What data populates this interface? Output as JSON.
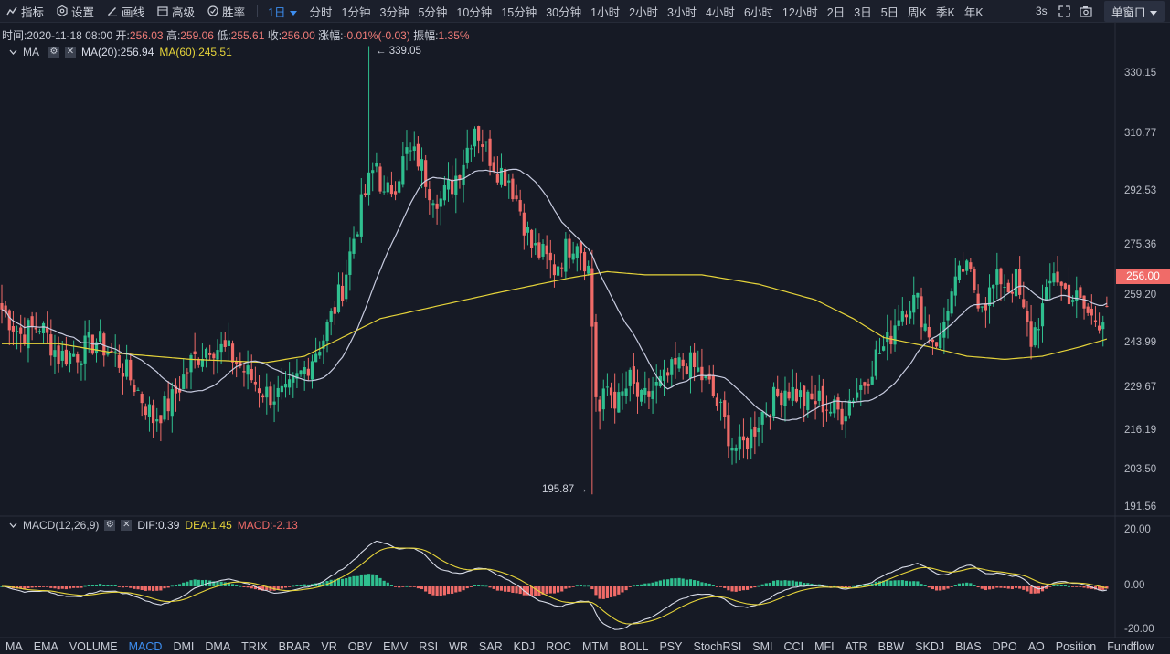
{
  "toolbar": {
    "tools": [
      {
        "label": "指标",
        "icon": "indicator-icon"
      },
      {
        "label": "设置",
        "icon": "settings-icon"
      },
      {
        "label": "画线",
        "icon": "draw-line-icon"
      },
      {
        "label": "高级",
        "icon": "advanced-icon"
      },
      {
        "label": "胜率",
        "icon": "winrate-icon"
      }
    ],
    "active_interval": "1日",
    "intervals": [
      "分时",
      "1分钟",
      "3分钟",
      "5分钟",
      "10分钟",
      "15分钟",
      "30分钟",
      "1小时",
      "2小时",
      "3小时",
      "4小时",
      "6小时",
      "12小时",
      "2日",
      "3日",
      "5日",
      "周K",
      "季K",
      "年K"
    ],
    "refresh": "3s",
    "window_mode": "单窗口"
  },
  "info": {
    "time_label": "时间:",
    "time": "2020-11-18 08:00",
    "open_label": "开:",
    "open": "256.03",
    "high_label": "高:",
    "high": "259.06",
    "low_label": "低:",
    "low": "255.61",
    "close_label": "收:",
    "close": "256.00",
    "change_label": "涨幅:",
    "change": "-0.01%(-0.03)",
    "amp_label": "振幅:",
    "amp": "1.35%"
  },
  "ma": {
    "name": "MA",
    "ma20": "MA(20):256.94",
    "ma60": "MA(60):245.51"
  },
  "macd": {
    "name": "MACD(12,26,9)",
    "dif": "DIF:0.39",
    "dea": "DEA:1.45",
    "macd": "MACD:-2.13"
  },
  "price_axis": [
    "330.15",
    "310.77",
    "292.53",
    "275.36",
    "259.20",
    "243.99",
    "229.67",
    "216.19",
    "203.50",
    "191.56"
  ],
  "macd_axis": [
    "20.00",
    "0.00",
    "-20.00"
  ],
  "current_price": "256.00",
  "annotations": {
    "high": "← 339.05",
    "low": "195.87 →"
  },
  "indicators": [
    "MA",
    "EMA",
    "VOLUME",
    "MACD",
    "DMI",
    "DMA",
    "TRIX",
    "BRAR",
    "VR",
    "OBV",
    "EMV",
    "RSI",
    "WR",
    "SAR",
    "KDJ",
    "ROC",
    "MTM",
    "BOLL",
    "PSY",
    "StochRSI",
    "SMI",
    "CCI",
    "MFI",
    "ATR",
    "BBW",
    "SKDJ",
    "BIAS",
    "DPO",
    "AO",
    "Position",
    "Fundflow"
  ],
  "active_indicator": "MACD",
  "colors": {
    "up": "#2fbf8f",
    "down": "#f06b68",
    "ma20": "#c8cce0",
    "ma60": "#e6d43a",
    "dif": "#d8dce8",
    "dea": "#e6d43a",
    "accent": "#3d8ef0"
  },
  "chart_data": {
    "type": "candlestick",
    "anchors_close": [
      [
        0,
        255
      ],
      [
        5,
        247
      ],
      [
        10,
        250
      ],
      [
        15,
        240
      ],
      [
        20,
        241
      ],
      [
        25,
        245
      ],
      [
        30,
        240
      ],
      [
        35,
        231
      ],
      [
        40,
        220
      ],
      [
        45,
        226
      ],
      [
        50,
        238
      ],
      [
        55,
        244
      ],
      [
        60,
        241
      ],
      [
        65,
        234
      ],
      [
        70,
        228
      ],
      [
        75,
        227
      ],
      [
        80,
        236
      ],
      [
        85,
        246
      ],
      [
        90,
        262
      ],
      [
        93,
        278
      ],
      [
        96,
        292
      ],
      [
        99,
        302
      ],
      [
        101,
        290
      ],
      [
        104,
        296
      ],
      [
        107,
        305
      ],
      [
        110,
        303
      ],
      [
        113,
        294
      ],
      [
        116,
        290
      ],
      [
        119,
        295
      ],
      [
        122,
        303
      ],
      [
        125,
        314
      ],
      [
        128,
        306
      ],
      [
        131,
        300
      ],
      [
        134,
        297
      ],
      [
        137,
        287
      ],
      [
        140,
        275
      ],
      [
        143,
        272
      ],
      [
        146,
        268
      ],
      [
        149,
        274
      ],
      [
        152,
        278
      ],
      [
        155,
        268
      ],
      [
        156,
        250
      ],
      [
        157,
        228
      ],
      [
        158,
        222
      ],
      [
        160,
        230
      ],
      [
        163,
        225
      ],
      [
        166,
        232
      ],
      [
        169,
        225
      ],
      [
        172,
        229
      ],
      [
        175,
        232
      ],
      [
        178,
        236
      ],
      [
        181,
        238
      ],
      [
        184,
        235
      ],
      [
        187,
        230
      ],
      [
        190,
        222
      ],
      [
        193,
        212
      ],
      [
        195,
        210
      ],
      [
        198,
        215
      ],
      [
        201,
        222
      ],
      [
        204,
        226
      ],
      [
        207,
        230
      ],
      [
        210,
        228
      ],
      [
        213,
        225
      ],
      [
        216,
        226
      ],
      [
        219,
        223
      ],
      [
        222,
        222
      ],
      [
        225,
        228
      ],
      [
        228,
        232
      ],
      [
        231,
        240
      ],
      [
        234,
        244
      ],
      [
        237,
        254
      ],
      [
        240,
        258
      ],
      [
        242,
        257
      ],
      [
        244,
        250
      ],
      [
        246,
        246
      ],
      [
        248,
        245
      ],
      [
        250,
        257
      ],
      [
        252,
        262
      ],
      [
        254,
        268
      ],
      [
        256,
        265
      ],
      [
        258,
        259
      ],
      [
        260,
        258
      ],
      [
        262,
        262
      ],
      [
        264,
        265
      ],
      [
        266,
        262
      ],
      [
        268,
        264
      ],
      [
        270,
        253
      ],
      [
        272,
        245
      ],
      [
        274,
        252
      ],
      [
        276,
        258
      ],
      [
        278,
        268
      ],
      [
        280,
        262
      ],
      [
        282,
        260
      ],
      [
        284,
        258
      ],
      [
        286,
        255
      ],
      [
        288,
        252
      ],
      [
        290,
        252
      ],
      [
        292,
        256
      ]
    ],
    "ma60_anchors": [
      [
        0,
        244
      ],
      [
        15,
        244
      ],
      [
        30,
        241
      ],
      [
        50,
        239
      ],
      [
        70,
        238
      ],
      [
        80,
        240
      ],
      [
        100,
        252
      ],
      [
        130,
        260
      ],
      [
        150,
        265
      ],
      [
        160,
        267
      ],
      [
        170,
        266
      ],
      [
        185,
        266
      ],
      [
        200,
        263
      ],
      [
        215,
        258
      ],
      [
        225,
        252
      ],
      [
        233,
        246
      ],
      [
        245,
        243
      ],
      [
        255,
        240
      ],
      [
        265,
        239
      ],
      [
        275,
        240
      ],
      [
        285,
        243
      ],
      [
        292,
        245.5
      ]
    ],
    "ohlc_sample_last": {
      "open": 256.03,
      "high": 259.06,
      "low": 255.61,
      "close": 256.0
    },
    "price_high": 339.05,
    "price_low": 195.87,
    "y_ticks": [
      330.15,
      310.77,
      292.53,
      275.36,
      259.2,
      243.99,
      229.67,
      216.19,
      203.5,
      191.56
    ],
    "macd_ticks": [
      20,
      0,
      -20
    ]
  }
}
